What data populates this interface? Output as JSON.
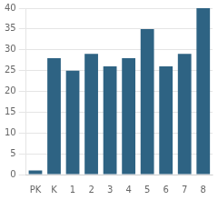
{
  "chart_data": {
    "type": "bar",
    "categories": [
      "PK",
      "K",
      "1",
      "2",
      "3",
      "4",
      "5",
      "6",
      "7",
      "8"
    ],
    "values": [
      1,
      28,
      25,
      29,
      26,
      28,
      35,
      26,
      29,
      40
    ],
    "color": "#2e6383",
    "ylim": [
      0,
      40
    ],
    "yticks": [
      0,
      5,
      10,
      15,
      20,
      25,
      30,
      35,
      40
    ],
    "grid": true
  }
}
